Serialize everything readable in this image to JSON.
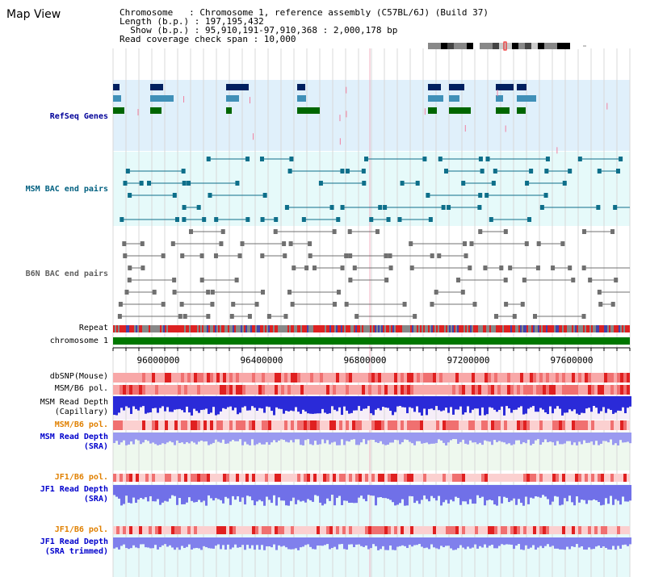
{
  "header": {
    "title": "Map View",
    "info_lines": [
      "Chromosome   : Chromosome 1, reference assembly (C57BL/6J) (Build 37)",
      "Length (b.p.) : 197,195,432",
      "  Show (b.p.) : 95,910,191-97,910,368 : 2,000,178 bp",
      "Read coverage check span : 10,000"
    ]
  },
  "tracks": {
    "refseq": "RefSeq Genes",
    "msm_bac": "MSM BAC end pairs",
    "b6n_bac": "B6N BAC end pairs",
    "repeat": "Repeat",
    "chromosome": "chromosome 1",
    "dbsnp": "dbSNP(Mouse)",
    "msm_b6_pol_1": "MSM/B6 pol.",
    "msm_depth_cap": "MSM Read Depth\n(Capillary)",
    "msm_b6_pol_2": "MSM/B6 pol.",
    "msm_depth_sra": "MSM Read Depth\n(SRA)",
    "jf1_b6_pol_1": "JF1/B6 pol.",
    "jf1_depth_sra": "JF1 Read Depth\n(SRA)",
    "jf1_b6_pol_2": "JF1/B6 pol.",
    "jf1_depth_trim": "JF1 Read Depth\n(SRA trimmed)"
  },
  "axis": {
    "ticks": [
      "96000000",
      "96400000",
      "96800000",
      "97200000",
      "97600000"
    ]
  },
  "colors": {
    "refseq_label": "#000099",
    "msm_label": "#006080",
    "b6n_label": "#606060",
    "pol_label": "#e08000",
    "depth_label": "#0000cc",
    "chromosome_bar": "#007700"
  }
}
